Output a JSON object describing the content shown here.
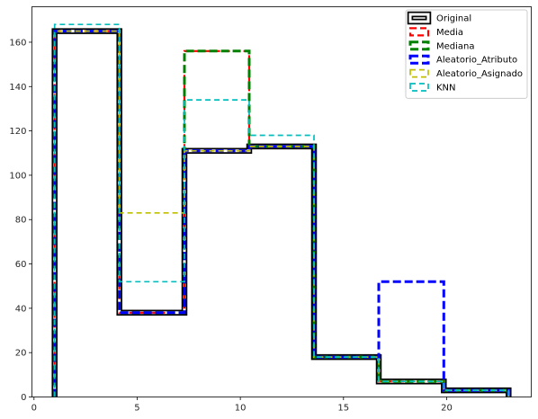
{
  "chart_data": {
    "type": "histogram-step",
    "title": "",
    "xlabel": "",
    "ylabel": "",
    "xlim": [
      -0.1,
      24.1
    ],
    "ylim": [
      0,
      176
    ],
    "xticks": [
      0,
      5,
      10,
      15,
      20
    ],
    "yticks": [
      0,
      20,
      40,
      60,
      80,
      100,
      120,
      140,
      160
    ],
    "grid": false,
    "legend_position": "top-right",
    "bin_edges": [
      1.0,
      4.14,
      7.29,
      10.43,
      13.57,
      16.71,
      19.86,
      23.0
    ],
    "series": [
      {
        "name": "Original",
        "color": "#000000",
        "style": "solid",
        "counts": [
          165,
          38,
          111,
          113,
          18,
          7,
          3
        ]
      },
      {
        "name": "Media",
        "color": "#ff0000",
        "style": "dashed",
        "counts": [
          165,
          38,
          156,
          113,
          18,
          7,
          3
        ]
      },
      {
        "name": "Mediana",
        "color": "#008000",
        "style": "dashed",
        "counts": [
          165,
          38,
          156,
          113,
          18,
          7,
          3
        ]
      },
      {
        "name": "Aleatorio_Atributo",
        "color": "#0000ff",
        "style": "dashed",
        "counts": [
          165,
          38,
          111,
          113,
          18,
          52,
          3
        ]
      },
      {
        "name": "Aleatorio_Asignado",
        "color": "#bfbf00",
        "style": "dashed",
        "counts": [
          165,
          83,
          111,
          113,
          18,
          7,
          3
        ]
      },
      {
        "name": "KNN",
        "color": "#00bfbf",
        "style": "dashed",
        "counts": [
          168,
          52,
          134,
          118,
          18,
          7,
          3
        ]
      }
    ]
  }
}
